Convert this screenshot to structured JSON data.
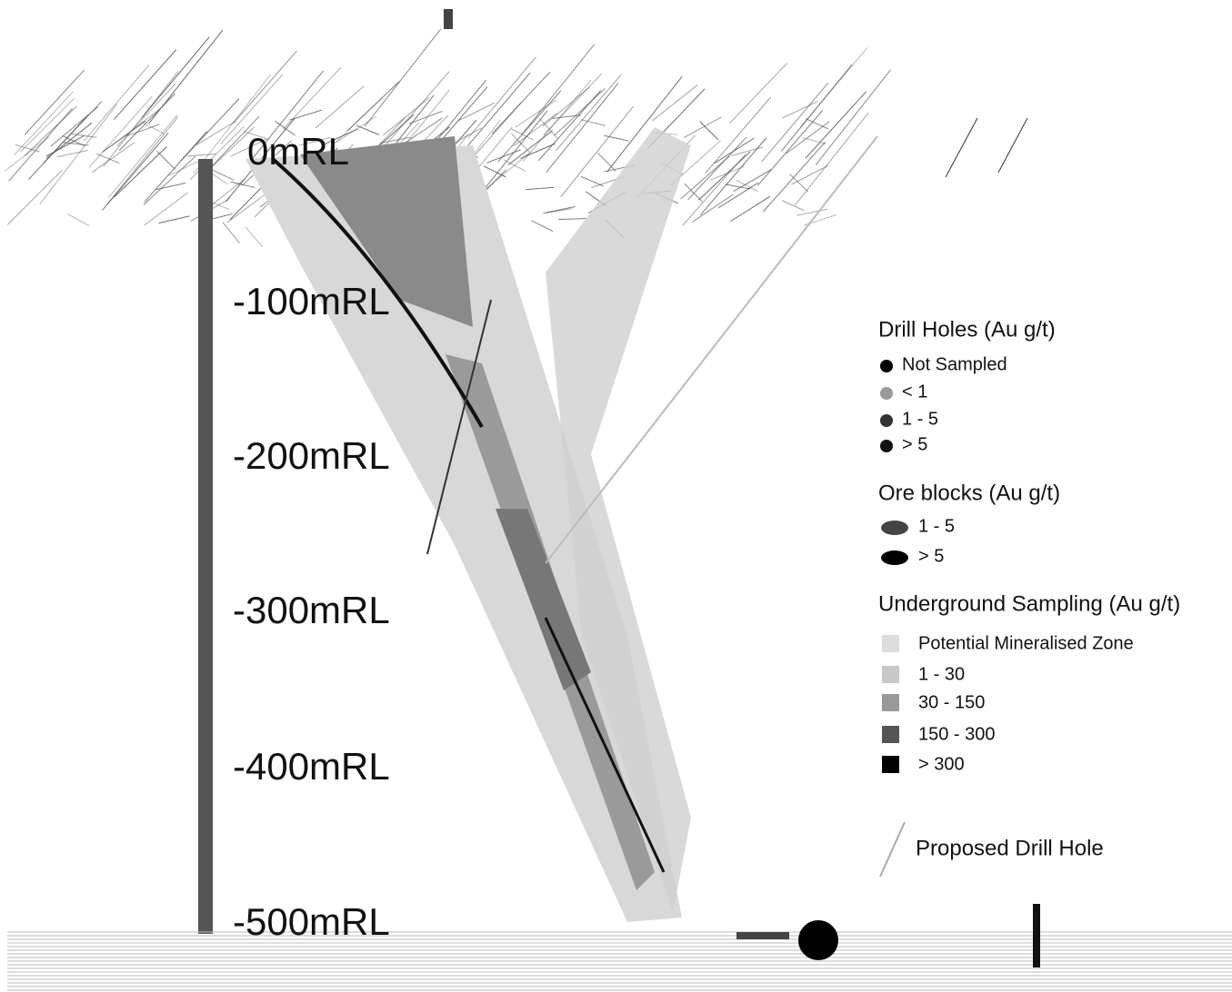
{
  "depth_labels": [
    "0mRL",
    "-100mRL",
    "-200mRL",
    "-300mRL",
    "-400mRL",
    "-500mRL"
  ],
  "legend": {
    "drill_holes": {
      "title": "Drill Holes (Au g/t)",
      "items": [
        "Not Sampled",
        "< 1",
        "1 - 5",
        "> 5"
      ]
    },
    "ore_blocks": {
      "title": "Ore blocks (Au g/t)",
      "items": [
        "1 - 5",
        "> 5"
      ]
    },
    "underground_sampling": {
      "title": "Underground Sampling (Au g/t)",
      "items": [
        "Potential Mineralised Zone",
        "1 - 30",
        "30 - 150",
        "150 - 300",
        "> 300"
      ]
    },
    "proposed": "Proposed Drill Hole"
  }
}
